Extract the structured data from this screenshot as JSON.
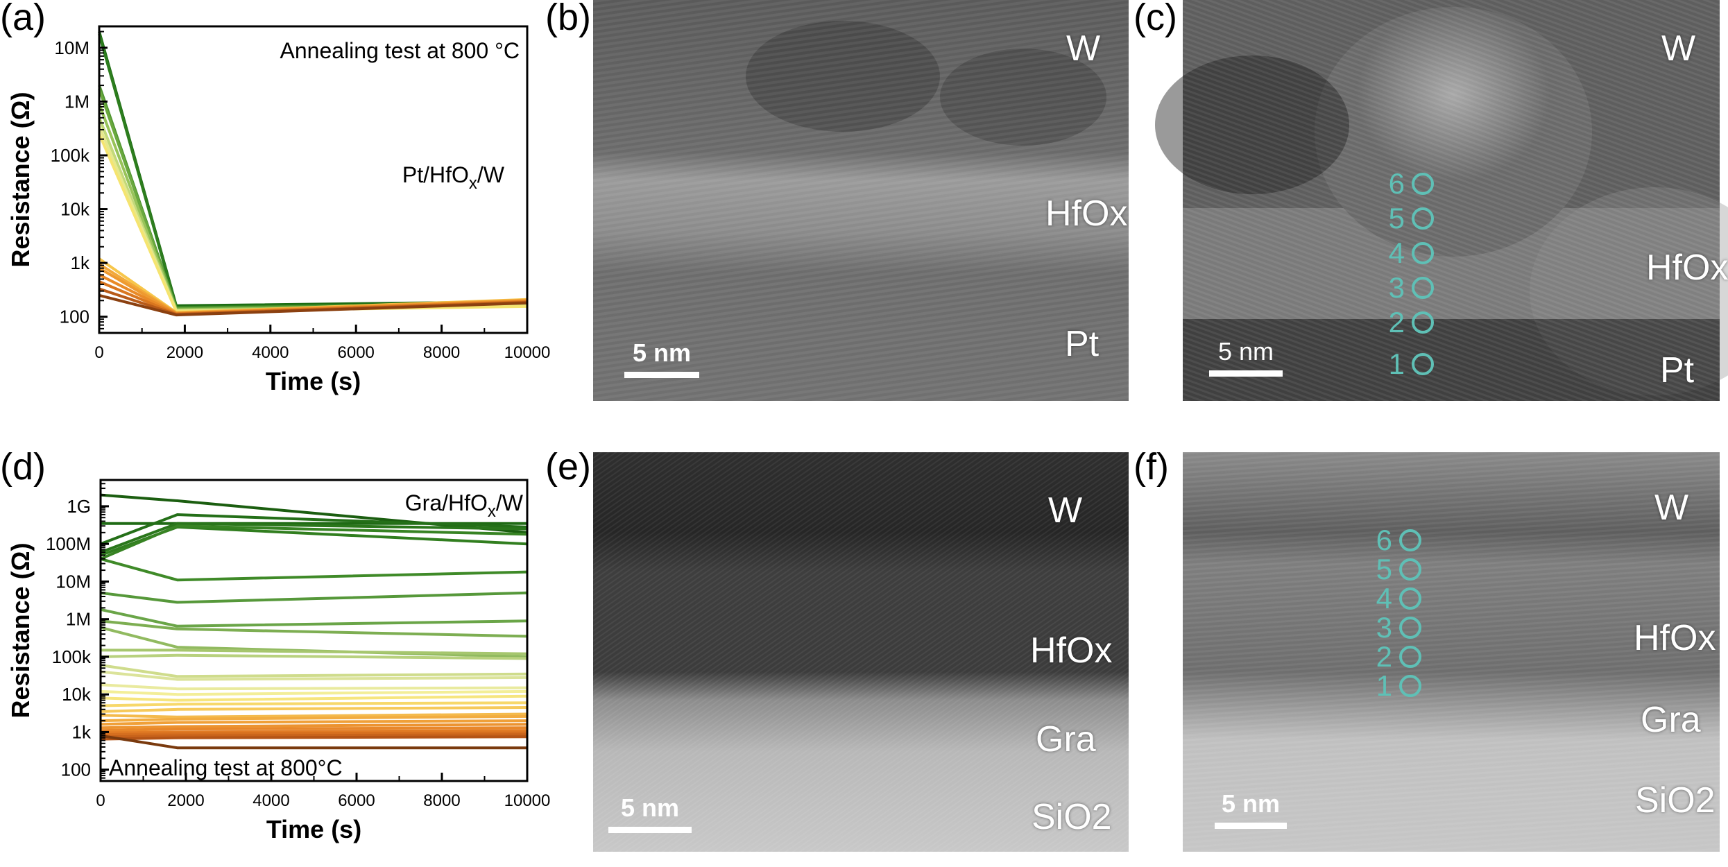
{
  "panels": {
    "a": "(a)",
    "b": "(b)",
    "c": "(c)",
    "d": "(d)",
    "e": "(e)",
    "f": "(f)"
  },
  "tem_b": {
    "labels": [
      "W",
      "HfOx",
      "Pt"
    ],
    "scalebar": "5 nm"
  },
  "tem_c": {
    "labels": [
      "W",
      "HfOx",
      "Pt"
    ],
    "scalebar": "5  nm",
    "markers": [
      "6",
      "5",
      "4",
      "3",
      "2",
      "1"
    ]
  },
  "tem_e": {
    "labels": [
      "W",
      "HfOx",
      "Gra",
      "SiO2"
    ],
    "scalebar": "5 nm"
  },
  "tem_f": {
    "labels": [
      "W",
      "HfOx",
      "Gra",
      "SiO2"
    ],
    "scalebar": "5 nm",
    "markers": [
      "6",
      "5",
      "4",
      "3",
      "2",
      "1"
    ]
  },
  "chart_data": [
    {
      "type": "line",
      "annotation": "Annealing test at 800 °C",
      "device_label": "Pt/HfOx/W",
      "xlabel": "Time (s)",
      "ylabel": "Resistance (Ω)",
      "xlim": [
        0,
        10000
      ],
      "ylim": [
        50,
        25000000
      ],
      "yscale": "log",
      "xticks": [
        0,
        2000,
        4000,
        6000,
        8000,
        10000
      ],
      "yticks": [
        100,
        1000,
        10000,
        100000,
        1000000,
        10000000
      ],
      "yticklabels": [
        "100",
        "1k",
        "10k",
        "100k",
        "1M",
        "10M"
      ],
      "x": [
        0,
        1800,
        10000
      ],
      "series": [
        {
          "values": [
            20000000,
            160,
            190
          ],
          "color": "#1b6b12"
        },
        {
          "values": [
            18000000,
            150,
            180
          ],
          "color": "#2d7d1e"
        },
        {
          "values": [
            2000000,
            145,
            175
          ],
          "color": "#4e9430"
        },
        {
          "values": [
            1700000,
            140,
            170
          ],
          "color": "#6aa83e"
        },
        {
          "values": [
            900000,
            135,
            165
          ],
          "color": "#98c35a"
        },
        {
          "values": [
            500000,
            130,
            160
          ],
          "color": "#c3d97a"
        },
        {
          "values": [
            350000,
            128,
            158
          ],
          "color": "#e6e88c"
        },
        {
          "values": [
            250000,
            125,
            155
          ],
          "color": "#f5e470"
        },
        {
          "values": [
            1200,
            120,
            210
          ],
          "color": "#f7c64a"
        },
        {
          "values": [
            950,
            118,
            205
          ],
          "color": "#f2a93a"
        },
        {
          "values": [
            800,
            116,
            200
          ],
          "color": "#ee9a30"
        },
        {
          "values": [
            600,
            114,
            195
          ],
          "color": "#e98a27"
        },
        {
          "values": [
            450,
            112,
            190
          ],
          "color": "#d9761f"
        },
        {
          "values": [
            330,
            110,
            185
          ],
          "color": "#b85a18"
        },
        {
          "values": [
            250,
            108,
            180
          ],
          "color": "#8b4010"
        }
      ]
    },
    {
      "type": "line",
      "annotation": "Annealing test at 800°C",
      "device_label": "Gra/HfOx/W",
      "xlabel": "Time (s)",
      "ylabel": "Resistance (Ω)",
      "xlim": [
        0,
        10000
      ],
      "ylim": [
        50,
        5000000000
      ],
      "yscale": "log",
      "xticks": [
        0,
        2000,
        4000,
        6000,
        8000,
        10000
      ],
      "yticks": [
        100,
        1000,
        10000,
        100000,
        1000000,
        10000000,
        100000000,
        1000000000
      ],
      "yticklabels": [
        "100",
        "1k",
        "10k",
        "100k",
        "1M",
        "10M",
        "100M",
        "1G"
      ],
      "x": [
        0,
        1800,
        10000
      ],
      "series": [
        {
          "values": [
            2000000000,
            1400000000,
            200000000
          ],
          "color": "#1b5e10"
        },
        {
          "values": [
            350000000,
            350000000,
            350000000
          ],
          "color": "#1f6a14"
        },
        {
          "values": [
            100000000,
            600000000,
            280000000
          ],
          "color": "#246f18"
        },
        {
          "values": [
            60000000,
            350000000,
            250000000
          ],
          "color": "#2a761b"
        },
        {
          "values": [
            50000000,
            280000000,
            100000000
          ],
          "color": "#317e1f"
        },
        {
          "values": [
            40000000,
            300000000,
            180000000
          ],
          "color": "#378323"
        },
        {
          "values": [
            40000000,
            11000000,
            18000000
          ],
          "color": "#3f8a28"
        },
        {
          "values": [
            5000000,
            2800000,
            5000000
          ],
          "color": "#56983a"
        },
        {
          "values": [
            1800000,
            650000,
            900000
          ],
          "color": "#6aa548"
        },
        {
          "values": [
            900000,
            550000,
            350000
          ],
          "color": "#7dae52"
        },
        {
          "values": [
            600000,
            180000,
            100000
          ],
          "color": "#91ba60"
        },
        {
          "values": [
            150000,
            150000,
            120000
          ],
          "color": "#a6c66e"
        },
        {
          "values": [
            100000,
            110000,
            90000
          ],
          "color": "#b8d17e"
        },
        {
          "values": [
            60000,
            30000,
            35000
          ],
          "color": "#cfdc8c"
        },
        {
          "values": [
            40000,
            25000,
            28000
          ],
          "color": "#dbe39a"
        },
        {
          "values": [
            18000,
            14000,
            15000
          ],
          "color": "#e9ea9e"
        },
        {
          "values": [
            12000,
            10000,
            12000
          ],
          "color": "#f3ee98"
        },
        {
          "values": [
            8000,
            7000,
            9000
          ],
          "color": "#f6e57e"
        },
        {
          "values": [
            5000,
            5500,
            6000
          ],
          "color": "#f7d86a"
        },
        {
          "values": [
            3500,
            4000,
            4500
          ],
          "color": "#f6c95a"
        },
        {
          "values": [
            2800,
            2500,
            3000
          ],
          "color": "#f4ba4c"
        },
        {
          "values": [
            2000,
            2200,
            2600
          ],
          "color": "#f2ac40"
        },
        {
          "values": [
            1600,
            1800,
            2000
          ],
          "color": "#f0a038"
        },
        {
          "values": [
            1300,
            1400,
            1600
          ],
          "color": "#ec9330"
        },
        {
          "values": [
            1100,
            1200,
            1300
          ],
          "color": "#e8872a"
        },
        {
          "values": [
            950,
            1000,
            1100
          ],
          "color": "#e17b24"
        },
        {
          "values": [
            850,
            900,
            950
          ],
          "color": "#d66f1f"
        },
        {
          "values": [
            750,
            800,
            850
          ],
          "color": "#c8631b"
        },
        {
          "values": [
            650,
            700,
            750
          ],
          "color": "#b45416"
        },
        {
          "values": [
            800,
            380,
            380
          ],
          "color": "#7a3a0e"
        }
      ]
    }
  ]
}
